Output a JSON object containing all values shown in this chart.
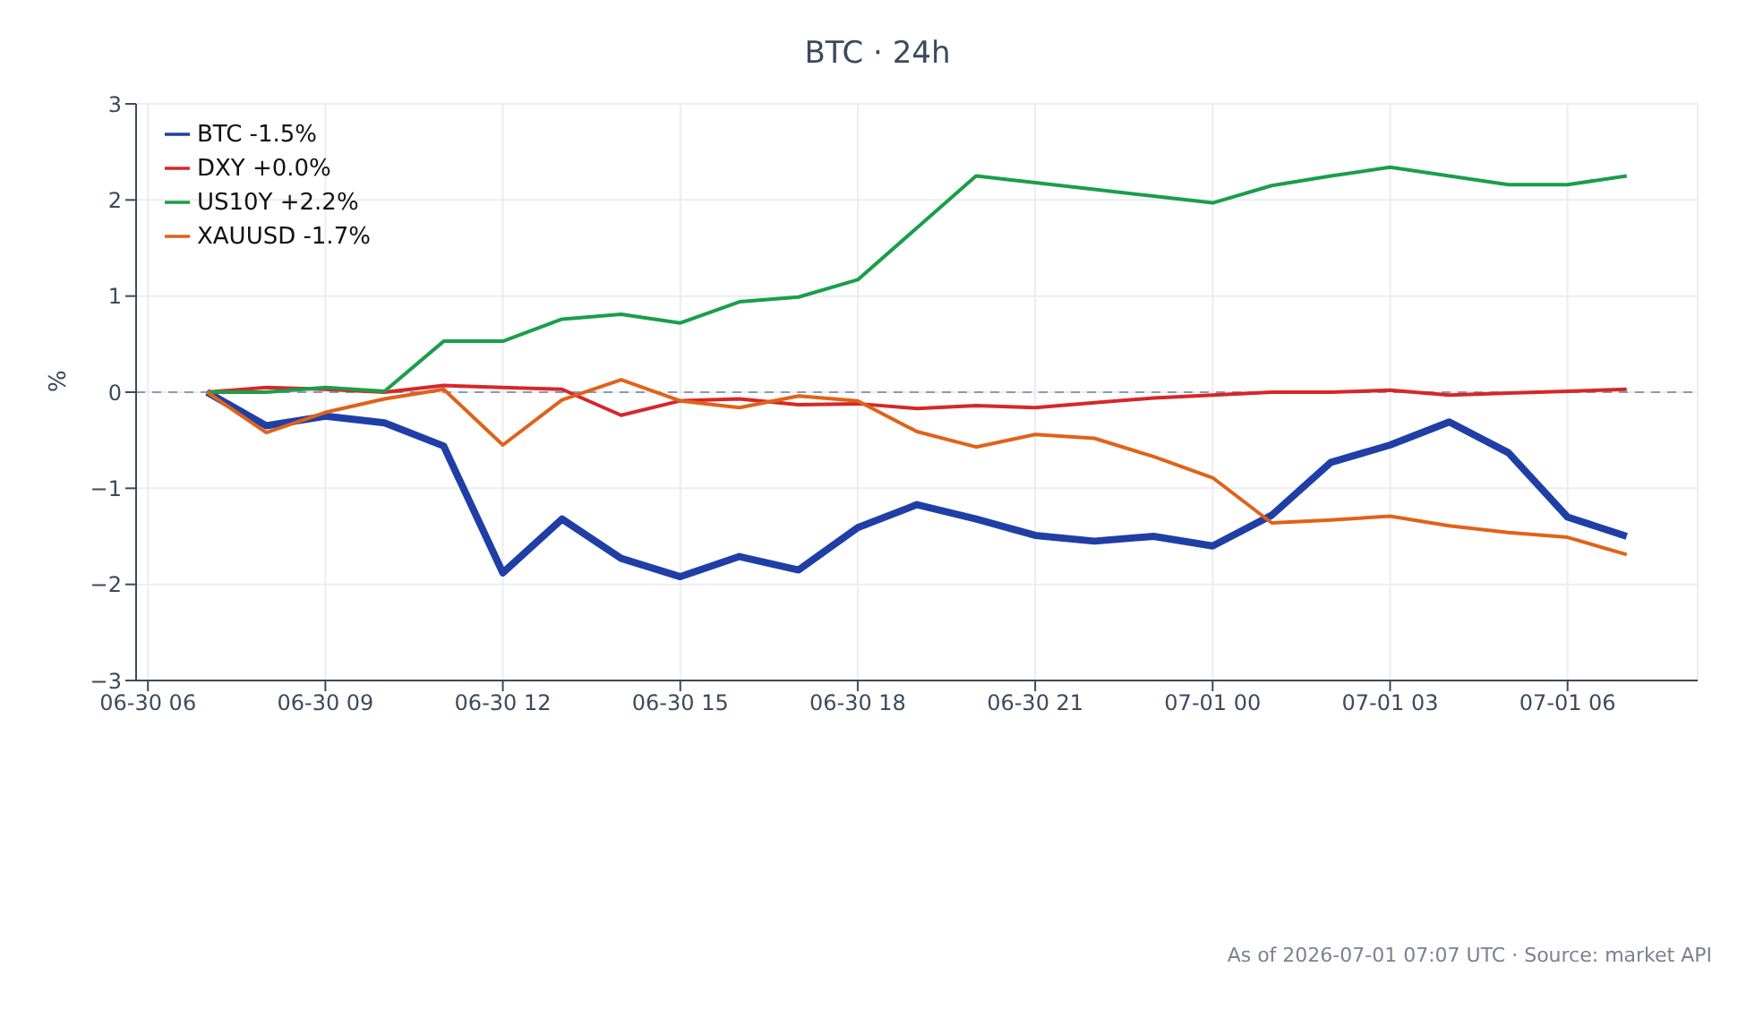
{
  "chart_data": {
    "type": "line",
    "title": "BTC · 24h",
    "ylabel": "%",
    "x": [
      "2026-06-30T07:00",
      "2026-06-30T08:00",
      "2026-06-30T09:00",
      "2026-06-30T10:00",
      "2026-06-30T11:00",
      "2026-06-30T12:00",
      "2026-06-30T13:00",
      "2026-06-30T14:00",
      "2026-06-30T15:00",
      "2026-06-30T16:00",
      "2026-06-30T17:00",
      "2026-06-30T18:00",
      "2026-06-30T19:00",
      "2026-06-30T20:00",
      "2026-06-30T21:00",
      "2026-06-30T22:00",
      "2026-06-30T23:00",
      "2026-07-01T00:00",
      "2026-07-01T01:00",
      "2026-07-01T02:00",
      "2026-07-01T03:00",
      "2026-07-01T04:00",
      "2026-07-01T05:00",
      "2026-07-01T06:00",
      "2026-07-01T07:00"
    ],
    "series": [
      {
        "name": "BTC -1.5%",
        "color": "#1f3fa6",
        "values": [
          0,
          -0.35,
          -0.25,
          -0.32,
          -0.56,
          -1.88,
          -1.32,
          -1.73,
          -1.92,
          -1.71,
          -1.85,
          -1.41,
          -1.17,
          -1.32,
          -1.49,
          -1.55,
          -1.5,
          -1.6,
          -1.28,
          -0.73,
          -0.55,
          -0.31,
          -0.63,
          -1.3,
          -1.5
        ]
      },
      {
        "name": "DXY +0.0%",
        "color": "#d62728",
        "values": [
          0,
          0.05,
          0.03,
          0,
          0.07,
          0.05,
          0.03,
          -0.24,
          -0.09,
          -0.07,
          -0.13,
          -0.12,
          -0.17,
          -0.14,
          -0.16,
          -0.11,
          -0.06,
          -0.03,
          0,
          0,
          0.02,
          -0.03,
          -0.01,
          0.01,
          0.03
        ]
      },
      {
        "name": "US10Y +2.2%",
        "color": "#1a9e4a",
        "values": [
          0,
          0,
          0.05,
          0.01,
          0.53,
          0.53,
          0.76,
          0.81,
          0.72,
          0.94,
          0.99,
          1.17,
          1.71,
          2.25,
          2.18,
          2.11,
          2.04,
          1.97,
          2.15,
          2.25,
          2.34,
          2.25,
          2.16,
          2.16,
          2.25
        ]
      },
      {
        "name": "XAUUSD -1.7%",
        "color": "#e0621a",
        "values": [
          0,
          -0.42,
          -0.21,
          -0.07,
          0.03,
          -0.55,
          -0.08,
          0.13,
          -0.09,
          -0.16,
          -0.04,
          -0.09,
          -0.41,
          -0.57,
          -0.44,
          -0.48,
          -0.67,
          -0.89,
          -1.36,
          -1.33,
          -1.29,
          -1.39,
          -1.46,
          -1.51,
          -1.69
        ]
      }
    ],
    "xlim": [
      "2026-06-30T05:48",
      "2026-07-01T08:12"
    ],
    "xticks": [
      {
        "value": "2026-06-30T06:00",
        "label": "06-30 06"
      },
      {
        "value": "2026-06-30T09:00",
        "label": "06-30 09"
      },
      {
        "value": "2026-06-30T12:00",
        "label": "06-30 12"
      },
      {
        "value": "2026-06-30T15:00",
        "label": "06-30 15"
      },
      {
        "value": "2026-06-30T18:00",
        "label": "06-30 18"
      },
      {
        "value": "2026-06-30T21:00",
        "label": "06-30 21"
      },
      {
        "value": "2026-07-01T00:00",
        "label": "07-01 00"
      },
      {
        "value": "2026-07-01T03:00",
        "label": "07-01 03"
      },
      {
        "value": "2026-07-01T06:00",
        "label": "07-01 06"
      }
    ],
    "ylim": [
      -3,
      3
    ],
    "yticks": [
      {
        "value": -3,
        "label": "−3"
      },
      {
        "value": -2,
        "label": "−2"
      },
      {
        "value": -1,
        "label": "−1"
      },
      0,
      1,
      2,
      3
    ],
    "ref_lines": [
      {
        "axis": "y",
        "value": 0,
        "color": "#8c98b4",
        "line_style": "dashed"
      }
    ],
    "grid": true,
    "legend": "top left",
    "marker": "none",
    "line_style": "solid",
    "annotations": [
      "As of 2026-07-01 07:07 UTC · Source: market API"
    ]
  }
}
